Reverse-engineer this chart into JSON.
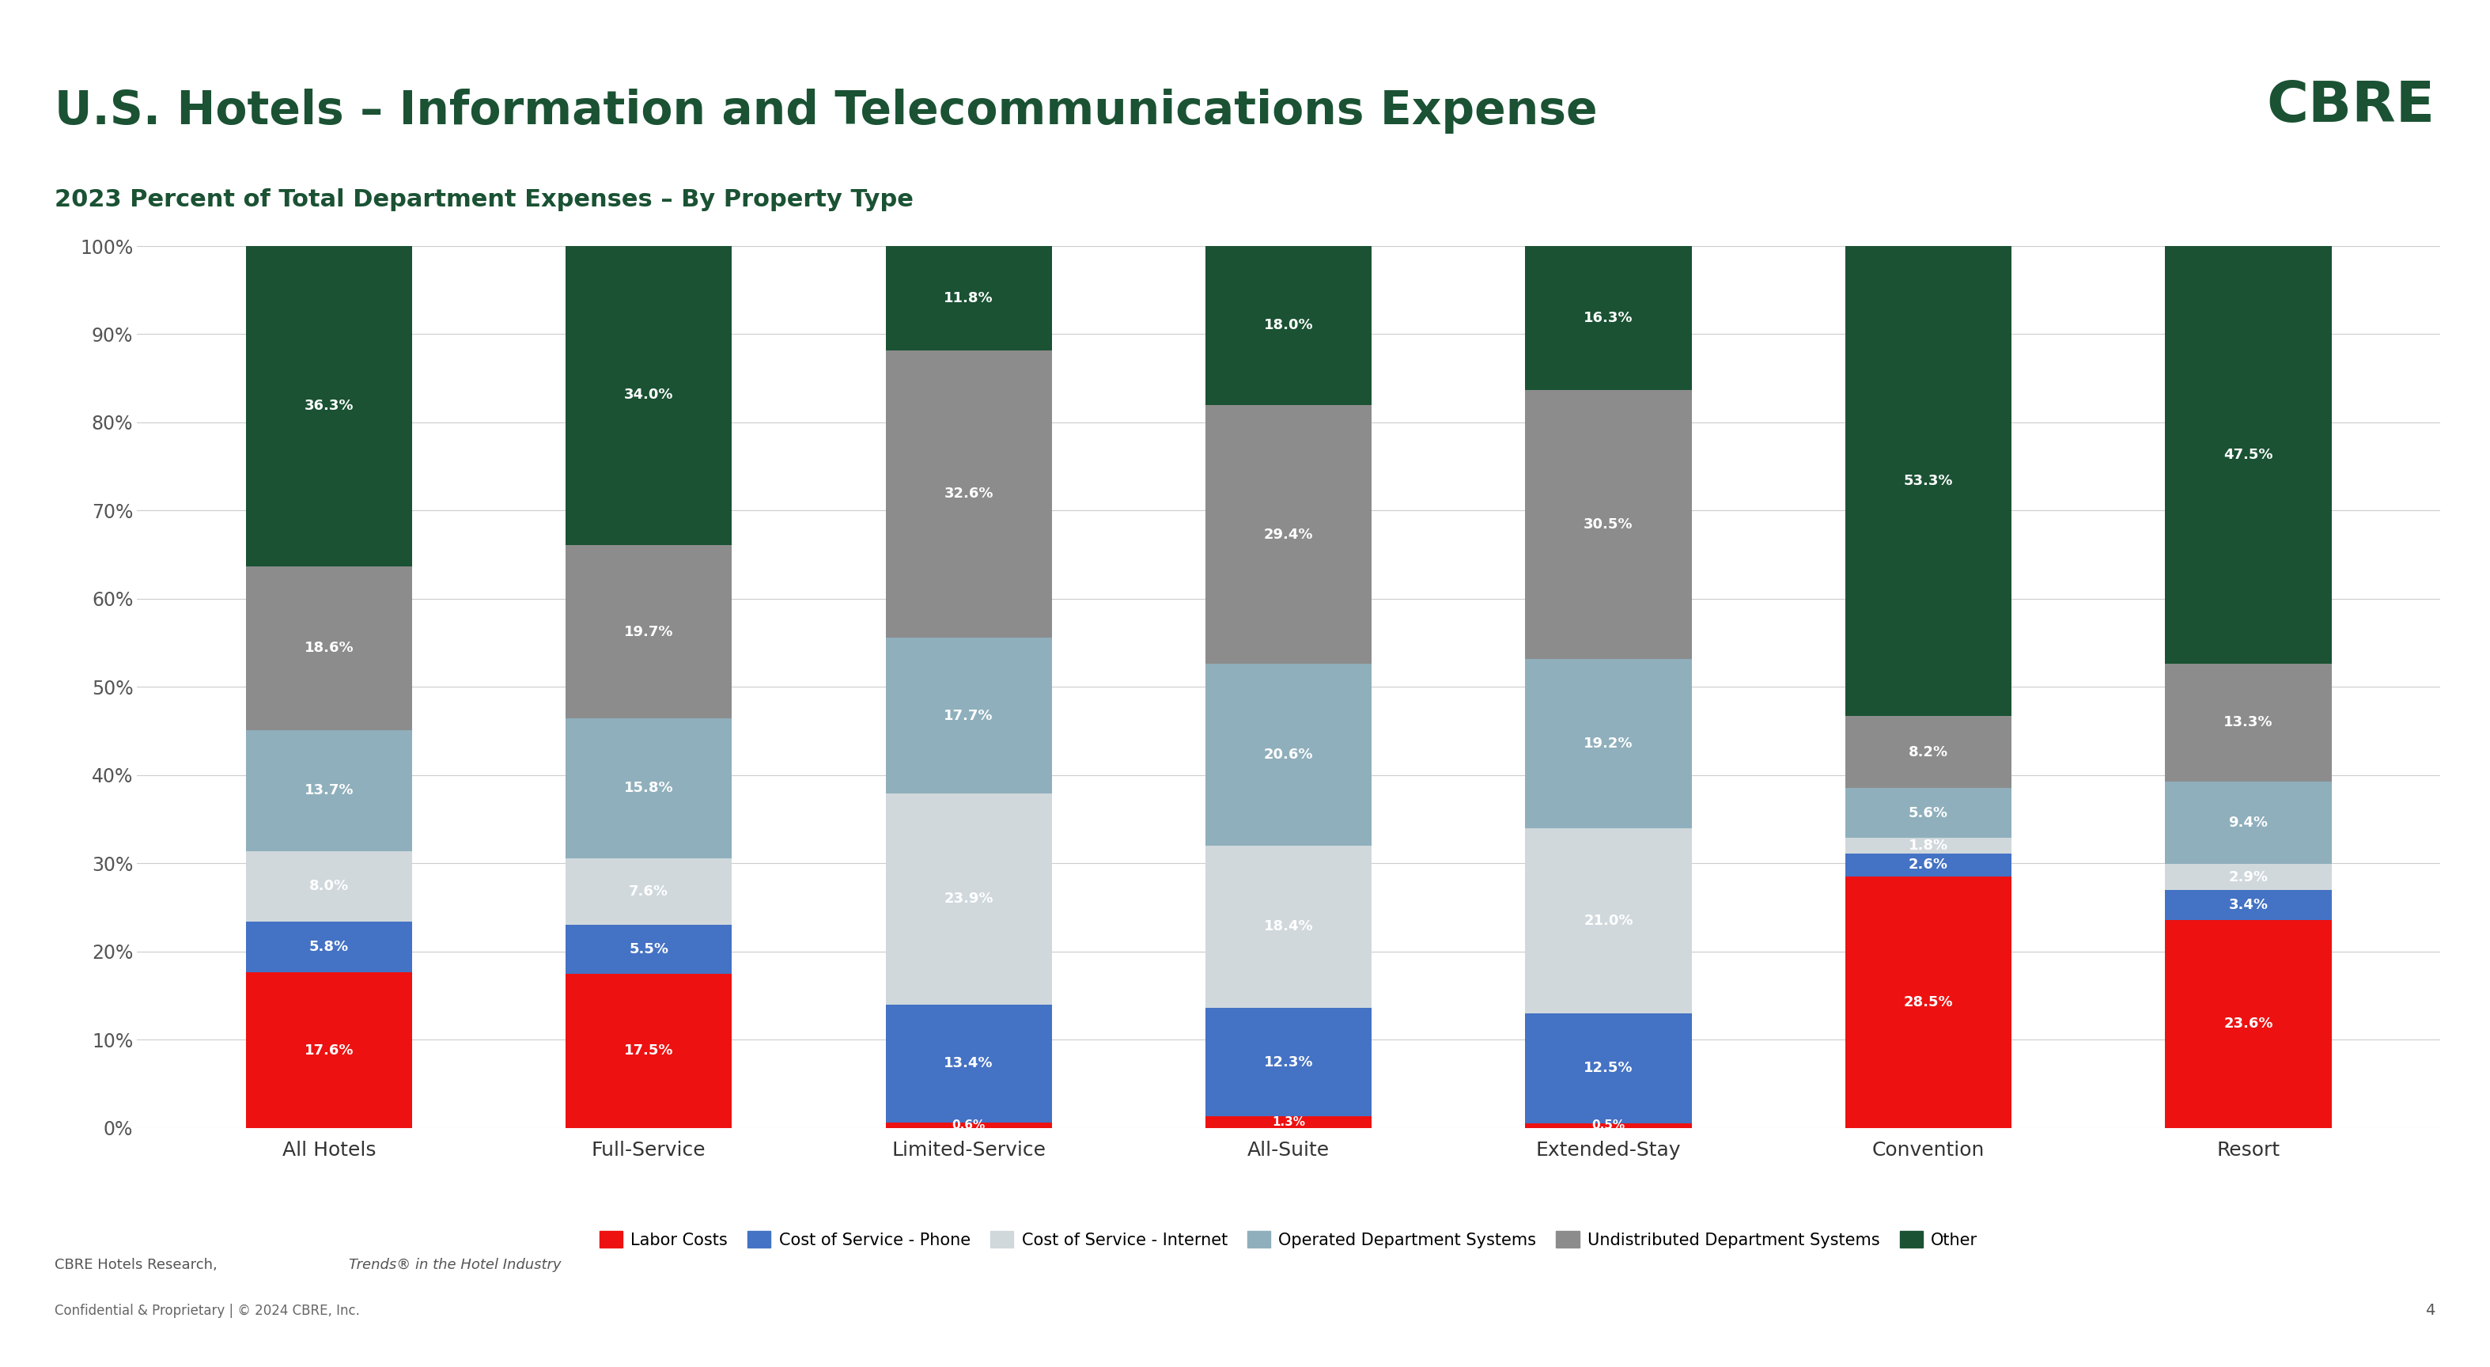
{
  "title": "U.S. Hotels – Information and Telecommunications Expense",
  "subtitle": "2023 Percent of Total Department Expenses – By Property Type",
  "categories": [
    "All Hotels",
    "Full-Service",
    "Limited-Service",
    "All-Suite",
    "Extended-Stay",
    "Convention",
    "Resort"
  ],
  "series": [
    {
      "name": "Labor Costs",
      "color": "#EE1111",
      "values": [
        17.6,
        17.5,
        0.6,
        1.3,
        0.5,
        28.5,
        23.6
      ]
    },
    {
      "name": "Cost of Service - Phone",
      "color": "#4472C4",
      "values": [
        5.8,
        5.5,
        13.4,
        12.3,
        12.5,
        2.6,
        3.4
      ]
    },
    {
      "name": "Cost of Service - Internet",
      "color": "#D0D8DC",
      "values": [
        8.0,
        7.6,
        23.9,
        18.4,
        21.0,
        1.8,
        2.9
      ]
    },
    {
      "name": "Operated Department Systems",
      "color": "#8FAFBC",
      "values": [
        13.7,
        15.8,
        17.7,
        20.6,
        19.2,
        5.6,
        9.4
      ]
    },
    {
      "name": "Undistributed Department Systems",
      "color": "#8C8C8C",
      "values": [
        18.6,
        19.7,
        32.6,
        29.4,
        30.5,
        8.2,
        13.3
      ]
    },
    {
      "name": "Other",
      "color": "#1A5233",
      "values": [
        36.3,
        34.0,
        11.8,
        18.0,
        16.3,
        53.3,
        47.5
      ]
    }
  ],
  "ylim": [
    0,
    100
  ],
  "yticks": [
    0,
    10,
    20,
    30,
    40,
    50,
    60,
    70,
    80,
    90,
    100
  ],
  "ytick_labels": [
    "0%",
    "10%",
    "20%",
    "30%",
    "40%",
    "50%",
    "60%",
    "70%",
    "80%",
    "90%",
    "100%"
  ],
  "background_color": "#FFFFFF",
  "plot_background_color": "#FFFFFF",
  "grid_color": "#CCCCCC",
  "bar_width": 0.52,
  "title_color": "#1A5233",
  "subtitle_color": "#1A5233",
  "axis_label_color": "#555555",
  "bar_label_color": "#FFFFFF",
  "bar_label_fontsize": 13,
  "title_fontsize": 42,
  "subtitle_fontsize": 22,
  "legend_fontsize": 15,
  "tick_fontsize": 17,
  "cbre_logo_color": "#1A5233",
  "footer_text1": "CBRE Hotels Research, Trends® in the Hotel Industry",
  "footer_text2": "Confidential & Proprietary | © 2024 CBRE, Inc.",
  "page_number": "4",
  "left_accent_color": "#4CAF50"
}
